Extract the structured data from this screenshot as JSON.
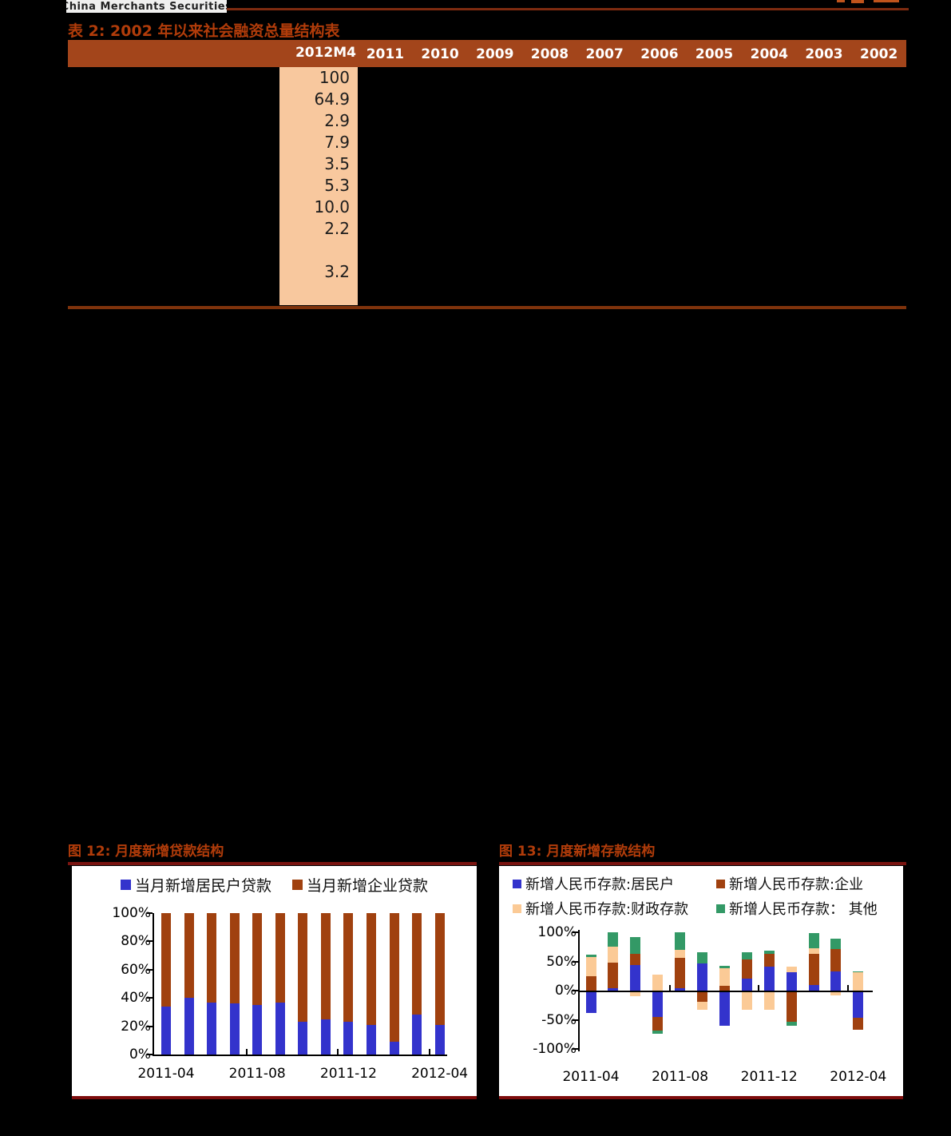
{
  "header": {
    "logo_text": "China Merchants Securities"
  },
  "table": {
    "title": "表 2: 2002 年以来社会融资总量结构表",
    "header": [
      "2012M4",
      "2011",
      "2010",
      "2009",
      "2008",
      "2007",
      "2006",
      "2005",
      "2004",
      "2003",
      "2002"
    ],
    "highlight_column": {
      "name": "2012M4",
      "values": [
        "100",
        "64.9",
        "2.9",
        "7.9",
        "3.5",
        "5.3",
        "10.0",
        "2.2",
        "",
        "3.2",
        ""
      ]
    }
  },
  "colors": {
    "accent_red": "#b13c0a",
    "table_header_brown": "#a3451b",
    "highlight_peach": "#f8c89e",
    "maroon_border": "#7d0c0c",
    "series_blue": "#3333cc",
    "series_brown_red": "#a0410f",
    "series_peach": "#fbca96",
    "series_green": "#339966"
  },
  "chart_data": [
    {
      "type": "bar",
      "stacked": true,
      "title": "图 12: 月度新增贷款结构",
      "x": [
        "2011-04",
        "2011-05",
        "2011-06",
        "2011-07",
        "2011-08",
        "2011-09",
        "2011-10",
        "2011-11",
        "2011-12",
        "2012-01",
        "2012-02",
        "2012-03",
        "2012-04"
      ],
      "x_tick_labels": [
        "2011-04",
        "2011-08",
        "2011-12",
        "2012-04"
      ],
      "yticks": [
        "100%",
        "80%",
        "60%",
        "40%",
        "20%",
        "0%"
      ],
      "ylim": [
        0,
        100
      ],
      "legend_position": "top-center",
      "grid": false,
      "series": [
        {
          "name": "当月新增居民户贷款",
          "color": "#3333cc",
          "values": [
            34,
            40,
            37,
            36,
            35,
            37,
            23,
            25,
            23,
            21,
            9,
            28,
            21
          ]
        },
        {
          "name": "当月新增企业贷款",
          "color": "#a0410f",
          "values": [
            66,
            60,
            63,
            64,
            65,
            63,
            77,
            75,
            77,
            79,
            91,
            72,
            79
          ]
        }
      ]
    },
    {
      "type": "bar",
      "stacked": true,
      "title": "图 13: 月度新增存款结构",
      "x": [
        "2011-04",
        "2011-05",
        "2011-06",
        "2011-07",
        "2011-08",
        "2011-09",
        "2011-10",
        "2011-11",
        "2011-12",
        "2012-01",
        "2012-02",
        "2012-03",
        "2012-04"
      ],
      "x_tick_labels": [
        "2011-04",
        "2011-08",
        "2011-12",
        "2012-04"
      ],
      "yticks": [
        "100%",
        "50%",
        "0%",
        "-50%",
        "-100%"
      ],
      "ylim": [
        -100,
        100
      ],
      "legend_position": "top-left-2x2",
      "grid": false,
      "series": [
        {
          "name": "新增人民币存款:居民户",
          "color": "#3333cc",
          "values": [
            -38,
            4,
            44,
            -45,
            4,
            46,
            -60,
            20,
            41,
            32,
            10,
            33,
            -47
          ]
        },
        {
          "name": "新增人民币存款:企业",
          "color": "#a0410f",
          "values": [
            25,
            44,
            19,
            -24,
            52,
            -19,
            8,
            33,
            22,
            -54,
            53,
            38,
            -20
          ]
        },
        {
          "name": "新增人民币存款:财政存款",
          "color": "#fbca96",
          "values": [
            32,
            28,
            -10,
            28,
            14,
            -14,
            30,
            -33,
            -33,
            9,
            9,
            -8,
            31
          ]
        },
        {
          "name": "新增人民币存款： 其他",
          "color": "#339966",
          "values": [
            5,
            24,
            29,
            -5,
            30,
            20,
            4,
            13,
            5,
            -6,
            27,
            18,
            2
          ]
        }
      ]
    }
  ]
}
